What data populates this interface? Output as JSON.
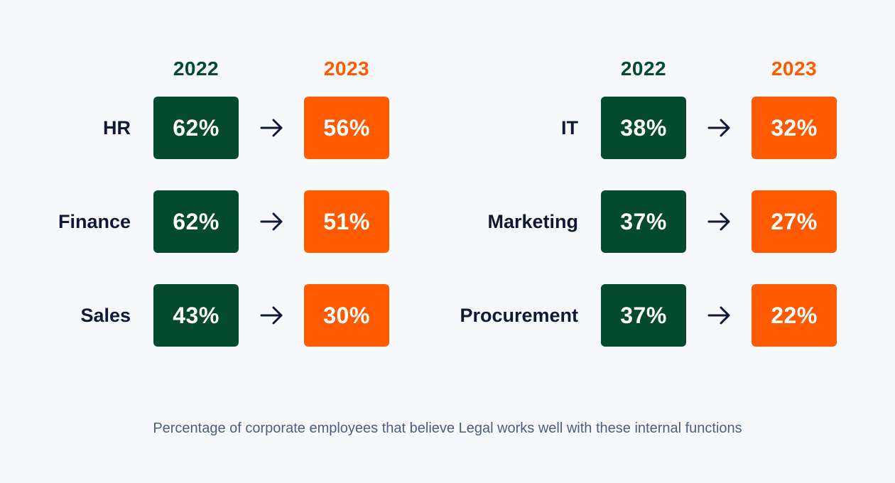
{
  "chart_data": [
    {
      "type": "table",
      "year_labels": [
        "2022",
        "2023"
      ],
      "rows": [
        {
          "function": "HR",
          "v2022": "62%",
          "v2023": "56%"
        },
        {
          "function": "Finance",
          "v2022": "62%",
          "v2023": "51%"
        },
        {
          "function": "Sales",
          "v2022": "43%",
          "v2023": "30%"
        }
      ]
    },
    {
      "type": "table",
      "year_labels": [
        "2022",
        "2023"
      ],
      "rows": [
        {
          "function": "IT",
          "v2022": "38%",
          "v2023": "32%"
        },
        {
          "function": "Marketing",
          "v2022": "37%",
          "v2023": "27%"
        },
        {
          "function": "Procurement",
          "v2022": "37%",
          "v2023": "22%"
        }
      ]
    }
  ],
  "caption": "Percentage of corporate employees that believe Legal works well with these internal functions",
  "colors": {
    "year_2022": "#034a2e",
    "year_2023": "#ff5a00",
    "label_text": "#0e1a33",
    "caption_text": "#4a5e82",
    "background": "#f6f8fc"
  },
  "icons": {
    "arrow": "arrow-right-icon"
  }
}
